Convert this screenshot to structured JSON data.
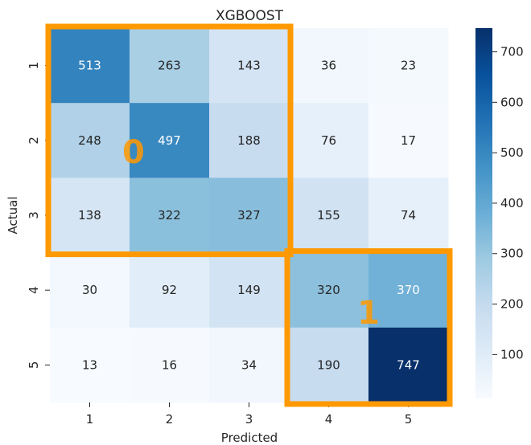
{
  "chart_data": {
    "type": "heatmap",
    "title": "XGBOOST",
    "xlabel": "Predicted",
    "ylabel": "Actual",
    "x_categories": [
      "1",
      "2",
      "3",
      "4",
      "5"
    ],
    "y_categories": [
      "1",
      "2",
      "3",
      "4",
      "5"
    ],
    "values": [
      [
        513,
        263,
        143,
        36,
        23
      ],
      [
        248,
        497,
        188,
        76,
        17
      ],
      [
        138,
        322,
        327,
        155,
        74
      ],
      [
        30,
        92,
        149,
        320,
        370
      ],
      [
        13,
        16,
        34,
        190,
        747
      ]
    ],
    "colormap": "Blues",
    "vmin": 13,
    "vmax": 747,
    "colorbar_ticks": [
      100,
      200,
      300,
      400,
      500,
      600,
      700
    ],
    "annotations": [
      {
        "label": "0",
        "rows": [
          0,
          2
        ],
        "cols": [
          0,
          2
        ],
        "color": "#ff9900"
      },
      {
        "label": "1",
        "rows": [
          3,
          4
        ],
        "cols": [
          3,
          4
        ],
        "color": "#ff9900"
      }
    ]
  }
}
